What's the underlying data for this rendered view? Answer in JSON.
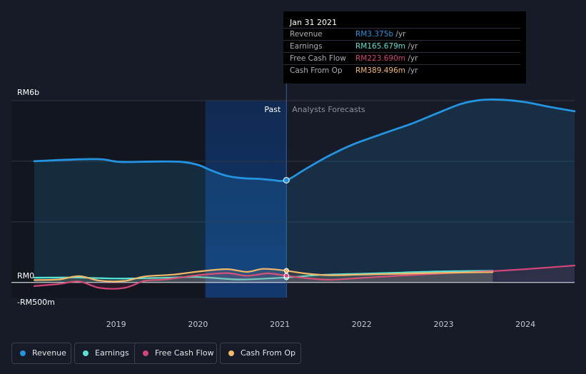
{
  "colors": {
    "revenue": "#2394df",
    "earnings": "#58e2d2",
    "free_cash_flow": "#d1457a",
    "cash_from_op": "#f2b869",
    "background": "#161b27",
    "past_band": "#0f2c57"
  },
  "tooltip": {
    "date": "Jan 31 2021",
    "rows": [
      {
        "label": "Revenue",
        "value": "RM3.375b",
        "unit": " /yr",
        "color": "#2394df"
      },
      {
        "label": "Earnings",
        "value": "RM165.679m",
        "unit": " /yr",
        "color": "#58e2d2"
      },
      {
        "label": "Free Cash Flow",
        "value": "RM223.690m",
        "unit": " /yr",
        "color": "#d1457a"
      },
      {
        "label": "Cash From Op",
        "value": "RM389.496m",
        "unit": " /yr",
        "color": "#f2b869"
      }
    ]
  },
  "legend": [
    {
      "label": "Revenue",
      "icon": "revenue-dot-icon",
      "color": "#2394df"
    },
    {
      "label": "Earnings",
      "icon": "earnings-dot-icon",
      "color": "#58e2d2"
    },
    {
      "label": "Free Cash Flow",
      "icon": "free-cash-flow-dot-icon",
      "color": "#d1457a"
    },
    {
      "label": "Cash From Op",
      "icon": "cash-from-op-dot-icon",
      "color": "#f2b869"
    }
  ],
  "chart_data": {
    "type": "area",
    "past_label": "Past",
    "forecast_label": "Analysts Forecasts",
    "y_tick_labels": [
      {
        "label": "RM6b",
        "value": 6000
      },
      {
        "label": "RM0",
        "value": 0
      },
      {
        "label": "-RM500m",
        "value": -500
      }
    ],
    "ylim": [
      -500,
      6000
    ],
    "y_unit": "RM millions",
    "x_ticks": [
      2019,
      2020,
      2021,
      2022,
      2023,
      2024
    ],
    "xlim": [
      2018.0,
      2024.6
    ],
    "gridlines": [
      0,
      2000,
      4000,
      6000
    ],
    "highlight_x": 2021.08,
    "past_band": [
      2020.09,
      2021.08
    ],
    "grid": true,
    "series": [
      {
        "name": "Revenue",
        "color": "#2394df",
        "points": [
          [
            2018.0,
            4000
          ],
          [
            2018.4,
            4050
          ],
          [
            2018.8,
            4070
          ],
          [
            2019.05,
            3980
          ],
          [
            2019.5,
            3990
          ],
          [
            2019.8,
            3980
          ],
          [
            2020.0,
            3880
          ],
          [
            2020.15,
            3710
          ],
          [
            2020.35,
            3520
          ],
          [
            2020.55,
            3440
          ],
          [
            2020.75,
            3420
          ],
          [
            2020.9,
            3380
          ],
          [
            2021.08,
            3375
          ],
          [
            2021.3,
            3720
          ],
          [
            2021.6,
            4180
          ],
          [
            2021.9,
            4560
          ],
          [
            2022.3,
            4950
          ],
          [
            2022.6,
            5230
          ],
          [
            2022.9,
            5560
          ],
          [
            2023.2,
            5880
          ],
          [
            2023.45,
            6020
          ],
          [
            2023.7,
            6030
          ],
          [
            2024.0,
            5950
          ],
          [
            2024.3,
            5790
          ],
          [
            2024.6,
            5650
          ]
        ]
      },
      {
        "name": "Earnings",
        "color": "#58e2d2",
        "points": [
          [
            2018.0,
            160
          ],
          [
            2018.5,
            165
          ],
          [
            2019.0,
            130
          ],
          [
            2019.5,
            150
          ],
          [
            2020.0,
            180
          ],
          [
            2020.5,
            100
          ],
          [
            2021.08,
            166
          ],
          [
            2021.5,
            250
          ],
          [
            2022.0,
            290
          ],
          [
            2022.5,
            330
          ],
          [
            2023.0,
            370
          ],
          [
            2023.6,
            390
          ]
        ]
      },
      {
        "name": "Free Cash Flow",
        "color": "#d1457a",
        "points": [
          [
            2018.0,
            -120
          ],
          [
            2018.3,
            -50
          ],
          [
            2018.55,
            30
          ],
          [
            2018.8,
            -180
          ],
          [
            2019.1,
            -180
          ],
          [
            2019.35,
            50
          ],
          [
            2019.6,
            100
          ],
          [
            2020.0,
            240
          ],
          [
            2020.35,
            310
          ],
          [
            2020.6,
            220
          ],
          [
            2020.85,
            300
          ],
          [
            2021.08,
            224
          ],
          [
            2021.3,
            150
          ],
          [
            2021.6,
            90
          ],
          [
            2022.0,
            150
          ],
          [
            2022.5,
            230
          ],
          [
            2023.0,
            300
          ],
          [
            2023.5,
            360
          ],
          [
            2024.0,
            440
          ],
          [
            2024.6,
            560
          ]
        ]
      },
      {
        "name": "Cash From Op",
        "color": "#f2b869",
        "points": [
          [
            2018.0,
            80
          ],
          [
            2018.3,
            100
          ],
          [
            2018.55,
            210
          ],
          [
            2018.8,
            60
          ],
          [
            2019.1,
            50
          ],
          [
            2019.35,
            200
          ],
          [
            2019.7,
            260
          ],
          [
            2020.0,
            360
          ],
          [
            2020.35,
            440
          ],
          [
            2020.6,
            350
          ],
          [
            2020.8,
            450
          ],
          [
            2021.08,
            389
          ],
          [
            2021.3,
            300
          ],
          [
            2021.6,
            240
          ],
          [
            2022.0,
            260
          ],
          [
            2022.5,
            290
          ],
          [
            2023.0,
            320
          ],
          [
            2023.6,
            340
          ]
        ]
      }
    ]
  }
}
